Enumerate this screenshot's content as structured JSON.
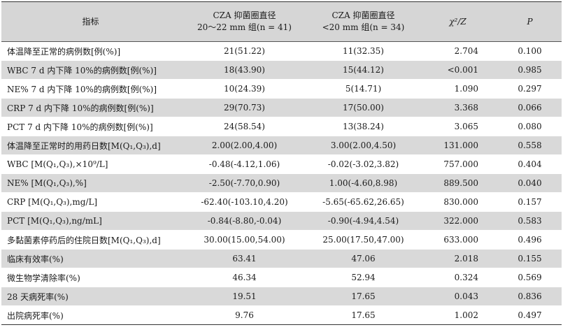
{
  "headers": {
    "indicator": "指标",
    "group1_line1": "CZA 抑菌圈直径",
    "group1_line2": "20～22 mm 组(n = 41)",
    "group2_line1": "CZA 抑菌圈直径",
    "group2_line2": "<20 mm 组(n = 34)",
    "stat": "χ²/Z",
    "p": "P"
  },
  "rows": [
    {
      "label": "体温降至正常的病例数[例(%)]",
      "g1": "21(51.22)",
      "g2": "11(32.35)",
      "stat": "2.704",
      "p": "0.100"
    },
    {
      "label": "WBC 7 d 内下降 10%的病例数[例(%)]",
      "g1": "18(43.90)",
      "g2": "15(44.12)",
      "stat": "<0.001",
      "p": "0.985"
    },
    {
      "label": "NE% 7 d 内下降 10%的病例数[例(%)]",
      "g1": "10(24.39)",
      "g2": "5(14.71)",
      "stat": "1.090",
      "p": "0.297"
    },
    {
      "label": "CRP 7 d 内下降 10%的病例数[例(%)]",
      "g1": "29(70.73)",
      "g2": "17(50.00)",
      "stat": "3.368",
      "p": "0.066"
    },
    {
      "label": "PCT 7 d 内下降 10%的病例数[例(%)]",
      "g1": "24(58.54)",
      "g2": "13(38.24)",
      "stat": "3.065",
      "p": "0.080"
    },
    {
      "label": "体温降至正常时的用药日数[M(Q₁,Q₃),d]",
      "g1": "2.00(2.00,4.00)",
      "g2": "3.00(2.00,4.50)",
      "stat": "131.000",
      "p": "0.558"
    },
    {
      "label": "WBC [M(Q₁,Q₃),×10⁹/L]",
      "g1": "-0.48(-4.12,1.06)",
      "g2": "-0.02(-3.02,3.82)",
      "stat": "757.000",
      "p": "0.404"
    },
    {
      "label": "NE% [M(Q₁,Q₃),%]",
      "g1": "-2.50(-7.70,0.90)",
      "g2": "1.00(-4.60,8.98)",
      "stat": "889.500",
      "p": "0.040"
    },
    {
      "label": "CRP [M(Q₁,Q₃),mg/L]",
      "g1": "-62.40(-103.10,4.20)",
      "g2": "-5.65(-65.62,26.65)",
      "stat": "830.000",
      "p": "0.157"
    },
    {
      "label": "PCT [M(Q₁,Q₃),ng/mL]",
      "g1": "-0.84(-8.80,-0.04)",
      "g2": "-0.90(-4.94,4.54)",
      "stat": "322.000",
      "p": "0.583"
    },
    {
      "label": "多黏菌素停药后的住院日数[M(Q₁,Q₃),d]",
      "g1": "30.00(15.00,54.00)",
      "g2": "25.00(17.50,47.00)",
      "stat": "633.000",
      "p": "0.496"
    },
    {
      "label": "临床有效率(%)",
      "g1": "63.41",
      "g2": "47.06",
      "stat": "2.018",
      "p": "0.155"
    },
    {
      "label": "微生物学清除率(%)",
      "g1": "46.34",
      "g2": "52.94",
      "stat": "0.324",
      "p": "0.569"
    },
    {
      "label": "28 天病死率(%)",
      "g1": "19.51",
      "g2": "17.65",
      "stat": "0.043",
      "p": "0.836"
    },
    {
      "label": "出院病死率(%)",
      "g1": "9.76",
      "g2": "17.65",
      "stat": "1.002",
      "p": "0.497"
    }
  ]
}
